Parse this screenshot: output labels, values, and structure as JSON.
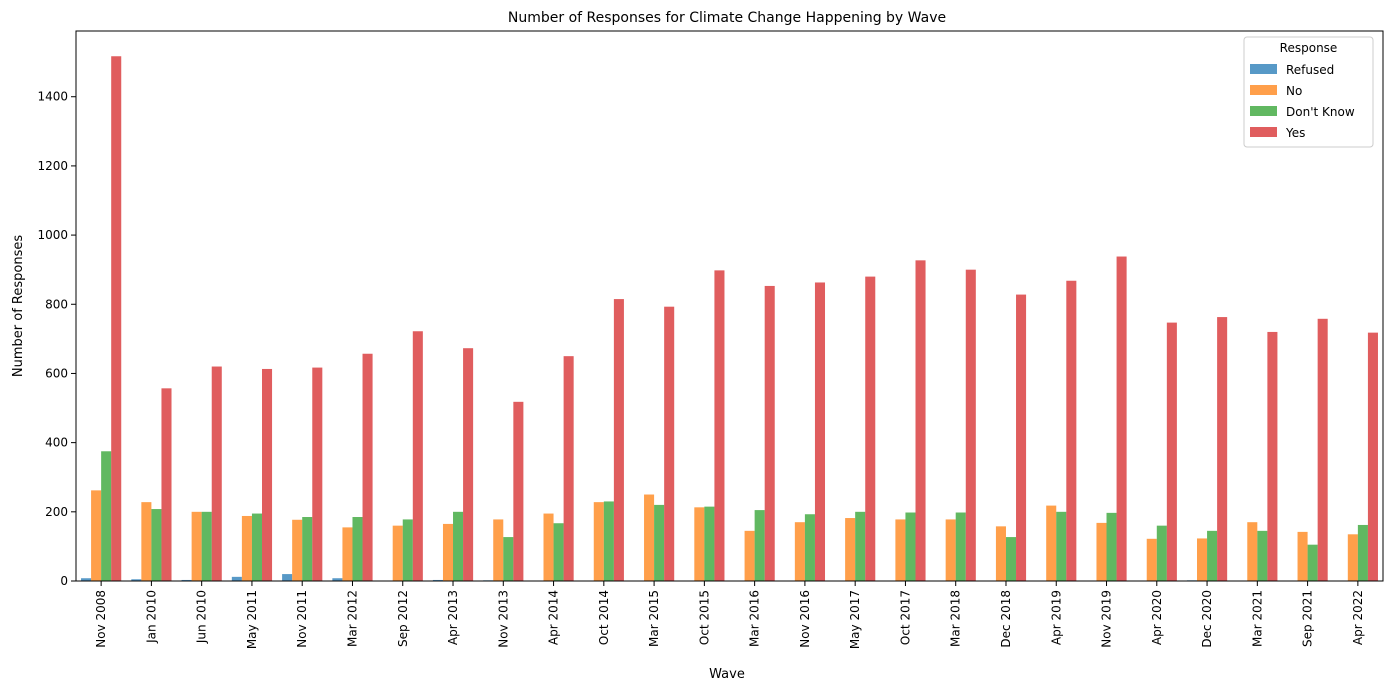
{
  "chart_data": {
    "type": "bar",
    "title": "Number of Responses for Climate Change Happening by Wave",
    "xlabel": "Wave",
    "ylabel": "Number of Responses",
    "ylim": [
      0,
      1590
    ],
    "yticks": [
      0,
      200,
      400,
      600,
      800,
      1000,
      1200,
      1400
    ],
    "grid": false,
    "legend_title": "Response",
    "legend_position": "top-right",
    "categories": [
      "Nov 2008",
      "Jan 2010",
      "Jun 2010",
      "May 2011",
      "Nov 2011",
      "Mar 2012",
      "Sep 2012",
      "Apr 2013",
      "Nov 2013",
      "Apr 2014",
      "Oct 2014",
      "Mar 2015",
      "Oct 2015",
      "Mar 2016",
      "Nov 2016",
      "May 2017",
      "Oct 2017",
      "Mar 2018",
      "Dec 2018",
      "Apr 2019",
      "Nov 2019",
      "Apr 2020",
      "Dec 2020",
      "Mar 2021",
      "Sep 2021",
      "Apr 2022"
    ],
    "series": [
      {
        "name": "Refused",
        "color": "#1f77b4",
        "values": [
          8,
          5,
          3,
          12,
          20,
          8,
          0,
          3,
          2,
          0,
          0,
          0,
          0,
          0,
          0,
          0,
          0,
          0,
          0,
          0,
          0,
          0,
          2,
          0,
          0,
          0
        ]
      },
      {
        "name": "No",
        "color": "#ff7f0e",
        "values": [
          262,
          228,
          200,
          188,
          177,
          155,
          160,
          165,
          178,
          195,
          228,
          250,
          213,
          145,
          170,
          182,
          178,
          178,
          158,
          218,
          168,
          122,
          123,
          170,
          142,
          135
        ]
      },
      {
        "name": "Don't Know",
        "color": "#2ca02c",
        "values": [
          375,
          208,
          200,
          195,
          185,
          185,
          178,
          200,
          127,
          167,
          230,
          220,
          215,
          205,
          193,
          200,
          198,
          198,
          127,
          200,
          197,
          160,
          145,
          145,
          105,
          162
        ]
      },
      {
        "name": "Yes",
        "color": "#d62728",
        "values": [
          1517,
          557,
          620,
          613,
          617,
          657,
          722,
          673,
          518,
          650,
          815,
          793,
          898,
          853,
          863,
          880,
          927,
          900,
          828,
          868,
          938,
          747,
          763,
          720,
          758,
          718
        ]
      }
    ]
  }
}
